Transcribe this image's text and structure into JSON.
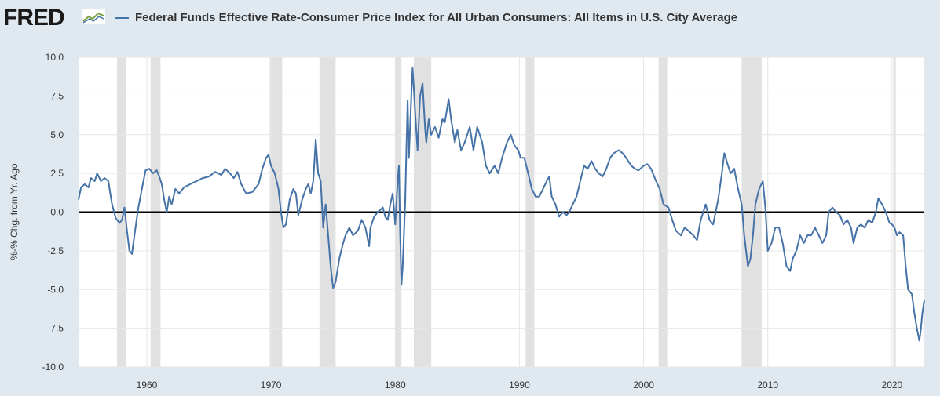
{
  "header": {
    "logo_text": "FRED",
    "series_title": "Federal Funds Effective Rate-Consumer Price Index for All Urban Consumers: All Items in U.S. City Average"
  },
  "colors": {
    "line": "#4572a7",
    "recession": "#e1e1e1",
    "zero_line": "#000000"
  },
  "chart_data": {
    "type": "line",
    "title": "Federal Funds Effective Rate-Consumer Price Index for All Urban Consumers: All Items in U.S. City Average",
    "xlabel": "",
    "ylabel": "%-% Chg. from Yr. Ago",
    "xlim": [
      1954.5,
      2022.6
    ],
    "ylim": [
      -10.0,
      10.0
    ],
    "x_ticks": [
      1960,
      1970,
      1980,
      1990,
      2000,
      2010,
      2020
    ],
    "y_ticks": [
      10.0,
      7.5,
      5.0,
      2.5,
      0.0,
      -2.5,
      -5.0,
      -7.5,
      -10.0
    ],
    "y_tick_labels": [
      "10.0",
      "7.5",
      "5.0",
      "2.5",
      "0.0",
      "-2.5",
      "-5.0",
      "-7.5",
      "-10.0"
    ],
    "recessions": [
      [
        1957.6,
        1958.3
      ],
      [
        1960.3,
        1961.1
      ],
      [
        1969.9,
        1970.9
      ],
      [
        1973.9,
        1975.2
      ],
      [
        1980.0,
        1980.5
      ],
      [
        1981.5,
        1982.9
      ],
      [
        1990.5,
        1991.2
      ],
      [
        2001.2,
        2001.9
      ],
      [
        2007.9,
        2009.5
      ],
      [
        2020.1,
        2020.3
      ]
    ],
    "series": [
      {
        "name": "Federal Funds Effective Rate-Consumer Price Index for All Urban Consumers: All Items in U.S. City Average",
        "points": [
          [
            1954.5,
            0.8
          ],
          [
            1954.7,
            1.6
          ],
          [
            1955.0,
            1.8
          ],
          [
            1955.3,
            1.6
          ],
          [
            1955.5,
            2.2
          ],
          [
            1955.8,
            2.0
          ],
          [
            1956.0,
            2.5
          ],
          [
            1956.3,
            2.0
          ],
          [
            1956.6,
            2.2
          ],
          [
            1956.9,
            2.0
          ],
          [
            1957.0,
            1.5
          ],
          [
            1957.2,
            0.5
          ],
          [
            1957.5,
            -0.4
          ],
          [
            1957.8,
            -0.7
          ],
          [
            1958.0,
            -0.5
          ],
          [
            1958.2,
            0.3
          ],
          [
            1958.4,
            -1.2
          ],
          [
            1958.6,
            -2.5
          ],
          [
            1958.8,
            -2.7
          ],
          [
            1959.0,
            -1.5
          ],
          [
            1959.3,
            0.2
          ],
          [
            1959.6,
            1.5
          ],
          [
            1959.9,
            2.7
          ],
          [
            1960.2,
            2.8
          ],
          [
            1960.5,
            2.5
          ],
          [
            1960.8,
            2.7
          ],
          [
            1961.0,
            2.3
          ],
          [
            1961.2,
            1.8
          ],
          [
            1961.4,
            0.8
          ],
          [
            1961.6,
            0.0
          ],
          [
            1961.8,
            1.0
          ],
          [
            1962.0,
            0.5
          ],
          [
            1962.3,
            1.5
          ],
          [
            1962.6,
            1.2
          ],
          [
            1963.0,
            1.6
          ],
          [
            1963.5,
            1.8
          ],
          [
            1964.0,
            2.0
          ],
          [
            1964.5,
            2.2
          ],
          [
            1965.0,
            2.3
          ],
          [
            1965.5,
            2.6
          ],
          [
            1966.0,
            2.4
          ],
          [
            1966.3,
            2.8
          ],
          [
            1966.7,
            2.5
          ],
          [
            1967.0,
            2.2
          ],
          [
            1967.3,
            2.6
          ],
          [
            1967.6,
            1.8
          ],
          [
            1968.0,
            1.2
          ],
          [
            1968.5,
            1.3
          ],
          [
            1969.0,
            1.8
          ],
          [
            1969.3,
            2.8
          ],
          [
            1969.6,
            3.5
          ],
          [
            1969.8,
            3.7
          ],
          [
            1970.0,
            3.0
          ],
          [
            1970.3,
            2.5
          ],
          [
            1970.6,
            1.5
          ],
          [
            1970.8,
            0.0
          ],
          [
            1971.0,
            -1.0
          ],
          [
            1971.2,
            -0.8
          ],
          [
            1971.5,
            0.8
          ],
          [
            1971.8,
            1.5
          ],
          [
            1972.0,
            1.2
          ],
          [
            1972.2,
            -0.2
          ],
          [
            1972.5,
            0.8
          ],
          [
            1972.8,
            1.5
          ],
          [
            1973.0,
            1.8
          ],
          [
            1973.2,
            1.2
          ],
          [
            1973.4,
            2.0
          ],
          [
            1973.6,
            4.7
          ],
          [
            1973.8,
            2.5
          ],
          [
            1974.0,
            2.0
          ],
          [
            1974.2,
            -1.0
          ],
          [
            1974.4,
            0.5
          ],
          [
            1974.6,
            -1.5
          ],
          [
            1974.8,
            -3.5
          ],
          [
            1975.0,
            -4.9
          ],
          [
            1975.2,
            -4.5
          ],
          [
            1975.5,
            -3.0
          ],
          [
            1975.8,
            -2.0
          ],
          [
            1976.0,
            -1.5
          ],
          [
            1976.3,
            -1.0
          ],
          [
            1976.6,
            -1.5
          ],
          [
            1977.0,
            -1.2
          ],
          [
            1977.3,
            -0.5
          ],
          [
            1977.6,
            -1.0
          ],
          [
            1977.9,
            -2.2
          ],
          [
            1978.0,
            -1.0
          ],
          [
            1978.3,
            -0.3
          ],
          [
            1978.6,
            0.0
          ],
          [
            1979.0,
            0.3
          ],
          [
            1979.2,
            -0.3
          ],
          [
            1979.4,
            -0.5
          ],
          [
            1979.6,
            0.5
          ],
          [
            1979.8,
            1.2
          ],
          [
            1979.9,
            0.2
          ],
          [
            1980.0,
            -0.8
          ],
          [
            1980.2,
            2.0
          ],
          [
            1980.3,
            3.0
          ],
          [
            1980.4,
            -1.5
          ],
          [
            1980.5,
            -4.7
          ],
          [
            1980.6,
            -3.5
          ],
          [
            1980.8,
            0.5
          ],
          [
            1980.9,
            4.0
          ],
          [
            1981.0,
            7.2
          ],
          [
            1981.1,
            3.5
          ],
          [
            1981.3,
            7.5
          ],
          [
            1981.4,
            9.3
          ],
          [
            1981.5,
            8.0
          ],
          [
            1981.6,
            6.5
          ],
          [
            1981.8,
            4.0
          ],
          [
            1982.0,
            7.5
          ],
          [
            1982.2,
            8.3
          ],
          [
            1982.4,
            5.5
          ],
          [
            1982.5,
            4.5
          ],
          [
            1982.7,
            6.0
          ],
          [
            1982.9,
            5.0
          ],
          [
            1983.2,
            5.5
          ],
          [
            1983.5,
            4.8
          ],
          [
            1983.8,
            6.0
          ],
          [
            1984.0,
            5.8
          ],
          [
            1984.3,
            7.3
          ],
          [
            1984.5,
            6.0
          ],
          [
            1984.8,
            4.5
          ],
          [
            1985.0,
            5.3
          ],
          [
            1985.3,
            4.0
          ],
          [
            1985.6,
            4.5
          ],
          [
            1986.0,
            5.5
          ],
          [
            1986.3,
            4.0
          ],
          [
            1986.6,
            5.5
          ],
          [
            1987.0,
            4.5
          ],
          [
            1987.3,
            3.0
          ],
          [
            1987.6,
            2.5
          ],
          [
            1988.0,
            3.0
          ],
          [
            1988.3,
            2.5
          ],
          [
            1988.6,
            3.5
          ],
          [
            1989.0,
            4.5
          ],
          [
            1989.3,
            5.0
          ],
          [
            1989.6,
            4.3
          ],
          [
            1989.9,
            4.0
          ],
          [
            1990.1,
            3.5
          ],
          [
            1990.4,
            3.5
          ],
          [
            1990.7,
            2.5
          ],
          [
            1991.0,
            1.5
          ],
          [
            1991.3,
            1.0
          ],
          [
            1991.6,
            1.0
          ],
          [
            1991.9,
            1.5
          ],
          [
            1992.2,
            2.0
          ],
          [
            1992.4,
            2.3
          ],
          [
            1992.6,
            1.0
          ],
          [
            1992.9,
            0.5
          ],
          [
            1993.2,
            -0.3
          ],
          [
            1993.5,
            0.0
          ],
          [
            1993.8,
            -0.2
          ],
          [
            1994.0,
            0.0
          ],
          [
            1994.3,
            0.5
          ],
          [
            1994.6,
            1.0
          ],
          [
            1994.9,
            2.0
          ],
          [
            1995.2,
            3.0
          ],
          [
            1995.5,
            2.8
          ],
          [
            1995.8,
            3.3
          ],
          [
            1996.1,
            2.8
          ],
          [
            1996.4,
            2.5
          ],
          [
            1996.7,
            2.3
          ],
          [
            1997.0,
            2.8
          ],
          [
            1997.3,
            3.5
          ],
          [
            1997.6,
            3.8
          ],
          [
            1998.0,
            4.0
          ],
          [
            1998.3,
            3.8
          ],
          [
            1998.6,
            3.5
          ],
          [
            1999.0,
            3.0
          ],
          [
            1999.3,
            2.8
          ],
          [
            1999.6,
            2.7
          ],
          [
            2000.0,
            3.0
          ],
          [
            2000.3,
            3.1
          ],
          [
            2000.6,
            2.8
          ],
          [
            2001.0,
            2.0
          ],
          [
            2001.3,
            1.5
          ],
          [
            2001.6,
            0.5
          ],
          [
            2002.0,
            0.3
          ],
          [
            2002.3,
            -0.5
          ],
          [
            2002.6,
            -1.2
          ],
          [
            2003.0,
            -1.5
          ],
          [
            2003.3,
            -1.0
          ],
          [
            2003.6,
            -1.2
          ],
          [
            2004.0,
            -1.5
          ],
          [
            2004.3,
            -1.8
          ],
          [
            2004.6,
            -0.5
          ],
          [
            2005.0,
            0.5
          ],
          [
            2005.3,
            -0.5
          ],
          [
            2005.6,
            -0.8
          ],
          [
            2006.0,
            0.8
          ],
          [
            2006.3,
            2.5
          ],
          [
            2006.5,
            3.8
          ],
          [
            2006.8,
            3.0
          ],
          [
            2007.0,
            2.5
          ],
          [
            2007.3,
            2.8
          ],
          [
            2007.6,
            1.5
          ],
          [
            2007.9,
            0.5
          ],
          [
            2008.1,
            -1.5
          ],
          [
            2008.4,
            -3.5
          ],
          [
            2008.6,
            -3.0
          ],
          [
            2008.8,
            -1.5
          ],
          [
            2009.0,
            0.5
          ],
          [
            2009.3,
            1.5
          ],
          [
            2009.6,
            2.0
          ],
          [
            2009.8,
            0.3
          ],
          [
            2010.0,
            -2.5
          ],
          [
            2010.3,
            -2.0
          ],
          [
            2010.6,
            -1.0
          ],
          [
            2010.9,
            -1.0
          ],
          [
            2011.2,
            -2.0
          ],
          [
            2011.5,
            -3.5
          ],
          [
            2011.8,
            -3.8
          ],
          [
            2012.0,
            -3.0
          ],
          [
            2012.3,
            -2.5
          ],
          [
            2012.6,
            -1.5
          ],
          [
            2012.9,
            -2.0
          ],
          [
            2013.2,
            -1.5
          ],
          [
            2013.5,
            -1.5
          ],
          [
            2013.8,
            -1.0
          ],
          [
            2014.1,
            -1.5
          ],
          [
            2014.4,
            -2.0
          ],
          [
            2014.7,
            -1.5
          ],
          [
            2014.9,
            0.0
          ],
          [
            2015.2,
            0.3
          ],
          [
            2015.5,
            0.0
          ],
          [
            2015.8,
            -0.2
          ],
          [
            2016.1,
            -0.8
          ],
          [
            2016.4,
            -0.5
          ],
          [
            2016.7,
            -1.0
          ],
          [
            2016.9,
            -2.0
          ],
          [
            2017.2,
            -1.0
          ],
          [
            2017.5,
            -0.8
          ],
          [
            2017.8,
            -1.0
          ],
          [
            2018.1,
            -0.5
          ],
          [
            2018.4,
            -0.7
          ],
          [
            2018.7,
            0.0
          ],
          [
            2018.9,
            0.9
          ],
          [
            2019.2,
            0.5
          ],
          [
            2019.5,
            0.0
          ],
          [
            2019.8,
            -0.7
          ],
          [
            2020.0,
            -0.8
          ],
          [
            2020.2,
            -1.0
          ],
          [
            2020.4,
            -1.5
          ],
          [
            2020.6,
            -1.3
          ],
          [
            2020.9,
            -1.5
          ],
          [
            2021.1,
            -3.5
          ],
          [
            2021.3,
            -5.0
          ],
          [
            2021.6,
            -5.3
          ],
          [
            2021.8,
            -6.5
          ],
          [
            2022.0,
            -7.5
          ],
          [
            2022.2,
            -8.3
          ],
          [
            2022.3,
            -7.7
          ],
          [
            2022.45,
            -6.5
          ],
          [
            2022.6,
            -5.7
          ]
        ]
      }
    ]
  }
}
